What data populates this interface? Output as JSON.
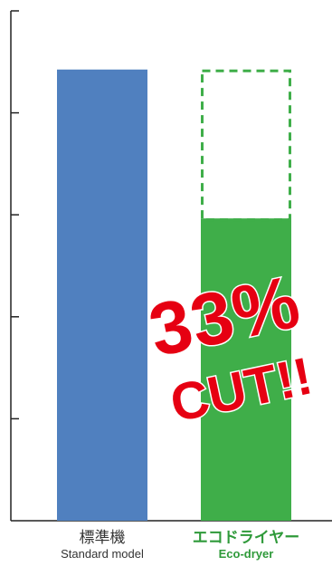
{
  "colors": {
    "standard": "#5080bf",
    "eco": "#3fae49",
    "axis": "#222222",
    "callout": "#e60012",
    "eco_label": "#2f9a3a"
  },
  "chart_data": {
    "type": "bar",
    "categories": [
      "標準機",
      "エコドライヤー"
    ],
    "category_sublabels": [
      "Standard model",
      "Eco-dryer"
    ],
    "values": [
      100,
      67
    ],
    "reference": {
      "category": "エコドライヤー",
      "value": 100,
      "style": "dashed outline"
    },
    "ylim": [
      0,
      113
    ],
    "yticks": 5,
    "tick_labels": false,
    "grid": false,
    "legend": "none",
    "annotation": {
      "line1": "33%",
      "line2": "CUT!!"
    }
  }
}
